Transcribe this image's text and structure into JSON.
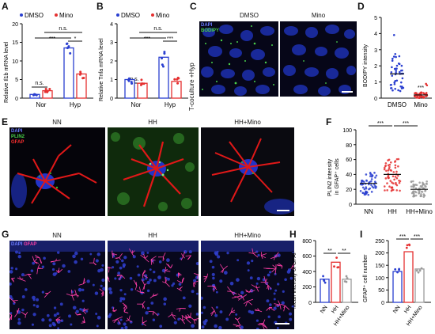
{
  "panels": {
    "A": {
      "letter": "A",
      "legend": [
        "DMSO",
        "Mino"
      ],
      "ylabel": "Relative Il1b mRNA level",
      "yticks": [
        "0",
        "5",
        "10",
        "15",
        "20"
      ],
      "categories": [
        "Nor",
        "Hyp"
      ],
      "sig": [
        "n.s.",
        "***",
        "n.s.",
        "*"
      ]
    },
    "B": {
      "letter": "B",
      "legend": [
        "DMSO",
        "Mino"
      ],
      "ylabel": "Relative Tnfa mRNA level",
      "yticks": [
        "0",
        "1",
        "2",
        "3",
        "4"
      ],
      "categories": [
        "Nor",
        "Hyp"
      ],
      "sig": [
        "n.s.",
        "***",
        "n.s.",
        "***"
      ]
    },
    "C": {
      "letter": "C",
      "titles": [
        "DMSO",
        "Mino"
      ],
      "side": "T-coculture +Hyp",
      "stain1": "DAPI",
      "stain2": "BODIPY"
    },
    "D": {
      "letter": "D",
      "ylabel": "BODIPY intensity",
      "yticks": [
        "0",
        "1",
        "2",
        "3",
        "4",
        "5"
      ],
      "categories": [
        "DMSO",
        "Mino"
      ],
      "sig": [
        "***"
      ]
    },
    "E": {
      "letter": "E",
      "titles": [
        "NN",
        "HH",
        "HH+Mino"
      ],
      "stain1": "DAPI",
      "stain2": "PLIN2",
      "stain3": "GFAP"
    },
    "F": {
      "letter": "F",
      "ylabel1": "PLIN2 intensity",
      "ylabel2": "in GFAP⁺ cells",
      "yticks": [
        "0",
        "20",
        "40",
        "60",
        "80",
        "100"
      ],
      "categories": [
        "NN",
        "HH",
        "HH+Mino"
      ],
      "sig": [
        "***",
        "***"
      ]
    },
    "G": {
      "letter": "G",
      "titles": [
        "NN",
        "HH",
        "HH+Mino"
      ],
      "stain1": "DAPI",
      "stain2": "GFAP"
    },
    "H": {
      "letter": "H",
      "ylabel": "Mean intensity of GFAP",
      "yticks": [
        "0",
        "200",
        "400",
        "600",
        "800"
      ],
      "categories": [
        "NN",
        "HH",
        "HH+Mino"
      ],
      "sig": [
        "**",
        "**"
      ]
    },
    "I": {
      "letter": "I",
      "ylabel": "GFAP⁺ cell number",
      "yticks": [
        "0",
        "50",
        "100",
        "150",
        "200",
        "250"
      ],
      "categories": [
        "NN",
        "HH",
        "HH+Mino"
      ],
      "sig": [
        "***",
        "***"
      ]
    }
  },
  "colors": {
    "dmso": "#2a3fd0",
    "mino": "#e53030",
    "hh": "#e53030",
    "nn": "#2a3fd0",
    "mino_grey": "#9a9a9a"
  },
  "chart_data": [
    {
      "panel": "A",
      "type": "bar",
      "categories": [
        "Nor",
        "Hyp"
      ],
      "series": [
        {
          "name": "DMSO",
          "values": [
            1.0,
            13.5
          ]
        },
        {
          "name": "Mino",
          "values": [
            2.0,
            6.5
          ]
        }
      ],
      "ylim": [
        0,
        20
      ]
    },
    {
      "panel": "B",
      "type": "bar",
      "categories": [
        "Nor",
        "Hyp"
      ],
      "series": [
        {
          "name": "DMSO",
          "values": [
            1.0,
            2.2
          ]
        },
        {
          "name": "Mino",
          "values": [
            0.8,
            0.9
          ]
        }
      ],
      "ylim": [
        0,
        4
      ]
    },
    {
      "panel": "D",
      "type": "scatter",
      "categories": [
        "DMSO",
        "Mino"
      ],
      "values": [
        1.5,
        0.2
      ],
      "ylim": [
        0,
        5
      ]
    },
    {
      "panel": "F",
      "type": "scatter",
      "categories": [
        "NN",
        "HH",
        "HH+Mino"
      ],
      "values": [
        28,
        40,
        20
      ],
      "ylim": [
        0,
        100
      ]
    },
    {
      "panel": "H",
      "type": "bar",
      "categories": [
        "NN",
        "HH",
        "HH+Mino"
      ],
      "values": [
        300,
        520,
        300
      ],
      "ylim": [
        0,
        800
      ]
    },
    {
      "panel": "I",
      "type": "bar",
      "categories": [
        "NN",
        "HH",
        "HH+Mino"
      ],
      "values": [
        125,
        205,
        135
      ],
      "ylim": [
        0,
        250
      ]
    }
  ]
}
